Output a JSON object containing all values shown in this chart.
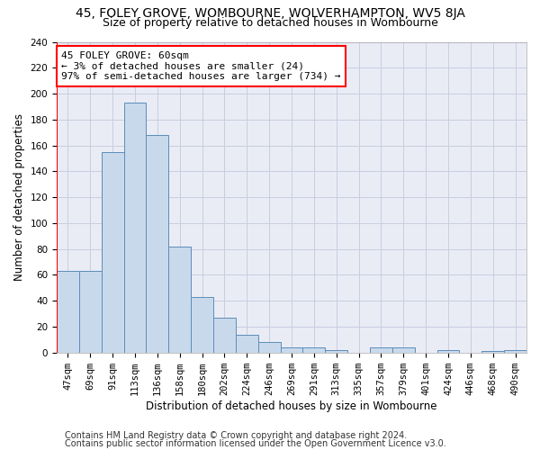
{
  "title": "45, FOLEY GROVE, WOMBOURNE, WOLVERHAMPTON, WV5 8JA",
  "subtitle": "Size of property relative to detached houses in Wombourne",
  "xlabel": "Distribution of detached houses by size in Wombourne",
  "ylabel": "Number of detached properties",
  "categories": [
    "47sqm",
    "69sqm",
    "91sqm",
    "113sqm",
    "136sqm",
    "158sqm",
    "180sqm",
    "202sqm",
    "224sqm",
    "246sqm",
    "269sqm",
    "291sqm",
    "313sqm",
    "335sqm",
    "357sqm",
    "379sqm",
    "401sqm",
    "424sqm",
    "446sqm",
    "468sqm",
    "490sqm"
  ],
  "values": [
    63,
    63,
    155,
    193,
    168,
    82,
    43,
    27,
    14,
    8,
    4,
    4,
    2,
    0,
    4,
    4,
    0,
    2,
    0,
    1,
    2
  ],
  "bar_color": "#c9d9ec",
  "bar_edge_color": "#5b8db8",
  "grid_color": "#c8cde0",
  "background_color": "#eaecf5",
  "annotation_line1": "45 FOLEY GROVE: 60sqm",
  "annotation_line2": "← 3% of detached houses are smaller (24)",
  "annotation_line3": "97% of semi-detached houses are larger (734) →",
  "vline_x": -0.5,
  "ylim": [
    0,
    240
  ],
  "yticks": [
    0,
    20,
    40,
    60,
    80,
    100,
    120,
    140,
    160,
    180,
    200,
    220,
    240
  ],
  "footer1": "Contains HM Land Registry data © Crown copyright and database right 2024.",
  "footer2": "Contains public sector information licensed under the Open Government Licence v3.0.",
  "title_fontsize": 10,
  "subtitle_fontsize": 9,
  "axis_label_fontsize": 8.5,
  "tick_fontsize": 7.5,
  "annot_fontsize": 8,
  "footer_fontsize": 7
}
